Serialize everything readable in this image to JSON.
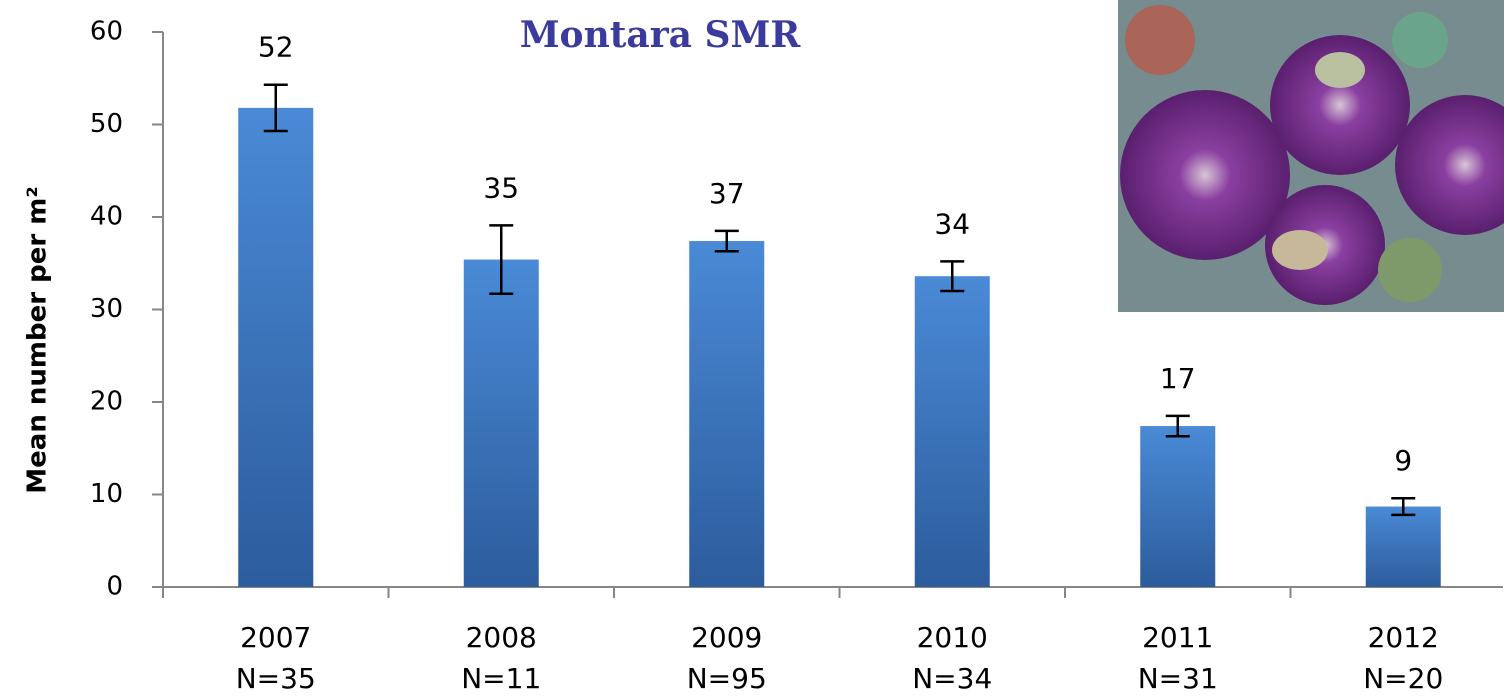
{
  "chart_data": {
    "type": "bar",
    "title": "Montara SMR",
    "y_label": "Mean number per m²",
    "categories": [
      "2007",
      "2008",
      "2009",
      "2010",
      "2011",
      "2012"
    ],
    "sample_sizes": [
      "N=35",
      "N=11",
      "N=95",
      "N=34",
      "N=31",
      "N=20"
    ],
    "values": [
      51.8,
      35.4,
      37.4,
      33.6,
      17.4,
      8.7
    ],
    "value_labels": [
      "52",
      "35",
      "37",
      "34",
      "17",
      "9"
    ],
    "errors": [
      2.5,
      3.7,
      1.1,
      1.6,
      1.1,
      0.9
    ],
    "color": "#3d78c4",
    "ylim": [
      0,
      60
    ],
    "yticks": [
      0,
      10,
      20,
      30,
      40,
      50,
      60
    ]
  }
}
